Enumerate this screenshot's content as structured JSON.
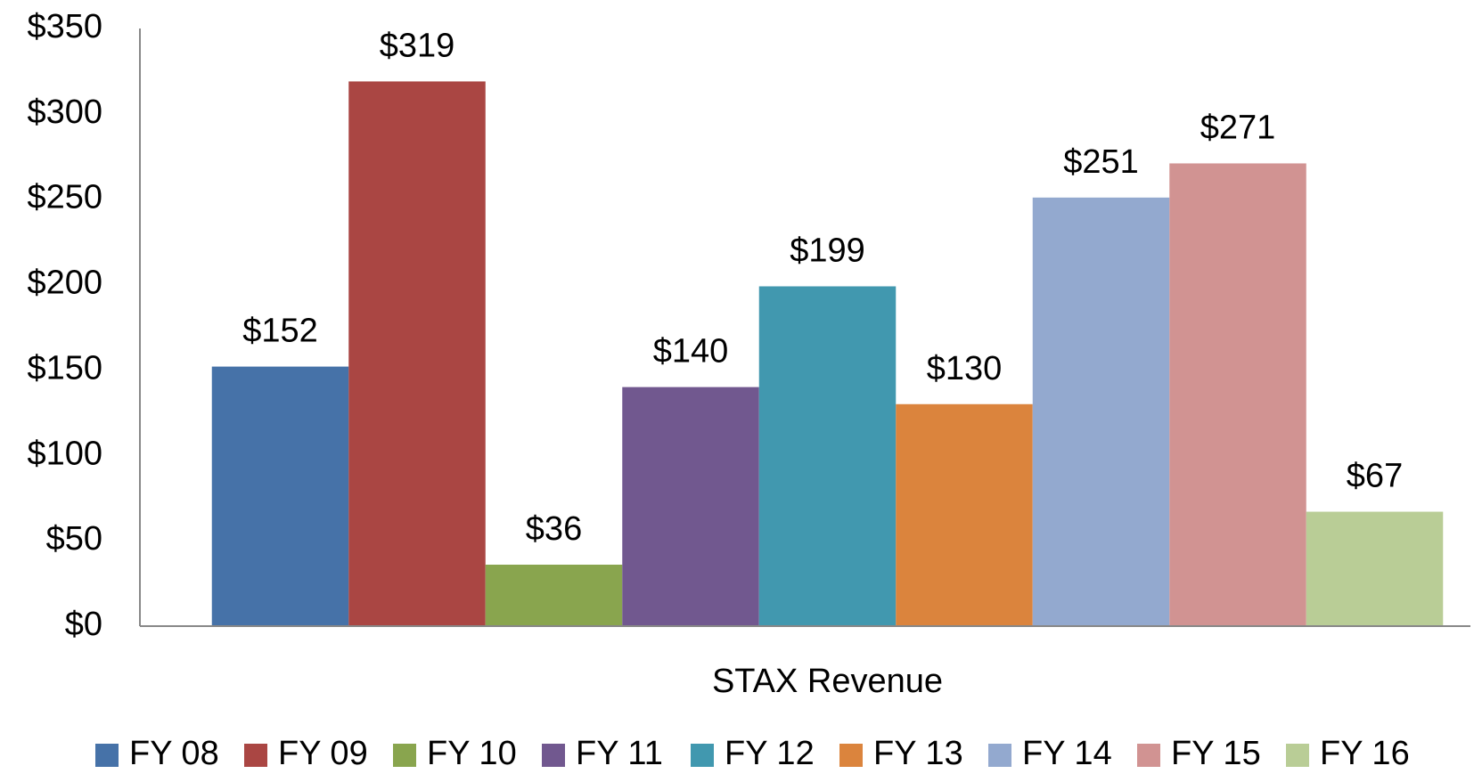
{
  "chart_data": {
    "type": "bar",
    "categories": [
      "STAX Revenue"
    ],
    "series": [
      {
        "name": "FY 08",
        "color": "#4672a8",
        "values": [
          152
        ],
        "value_labels": [
          "$152"
        ]
      },
      {
        "name": "FY 09",
        "color": "#aa4643",
        "values": [
          319
        ],
        "value_labels": [
          "$319"
        ]
      },
      {
        "name": "FY 10",
        "color": "#89a54e",
        "values": [
          36
        ],
        "value_labels": [
          "$36"
        ]
      },
      {
        "name": "FY 11",
        "color": "#71588f",
        "values": [
          140
        ],
        "value_labels": [
          "$140"
        ]
      },
      {
        "name": "FY 12",
        "color": "#4198af",
        "values": [
          199
        ],
        "value_labels": [
          "$199"
        ]
      },
      {
        "name": "FY 13",
        "color": "#db843d",
        "values": [
          130
        ],
        "value_labels": [
          "$130"
        ]
      },
      {
        "name": "FY 14",
        "color": "#93a9cf",
        "values": [
          251
        ],
        "value_labels": [
          "$251"
        ]
      },
      {
        "name": "FY 15",
        "color": "#d19392",
        "values": [
          271
        ],
        "value_labels": [
          "$271"
        ]
      },
      {
        "name": "FY 16",
        "color": "#b9cd96",
        "values": [
          67
        ],
        "value_labels": [
          "$67"
        ]
      }
    ],
    "ylim": [
      0,
      350
    ],
    "yticks": [
      {
        "value": 0,
        "label": "$0"
      },
      {
        "value": 50,
        "label": "$50"
      },
      {
        "value": 100,
        "label": "$100"
      },
      {
        "value": 150,
        "label": "$150"
      },
      {
        "value": 200,
        "label": "$200"
      },
      {
        "value": 250,
        "label": "$250"
      },
      {
        "value": 300,
        "label": "$300"
      },
      {
        "value": 350,
        "label": "$350"
      }
    ],
    "grid": false,
    "legend": "bottom"
  }
}
